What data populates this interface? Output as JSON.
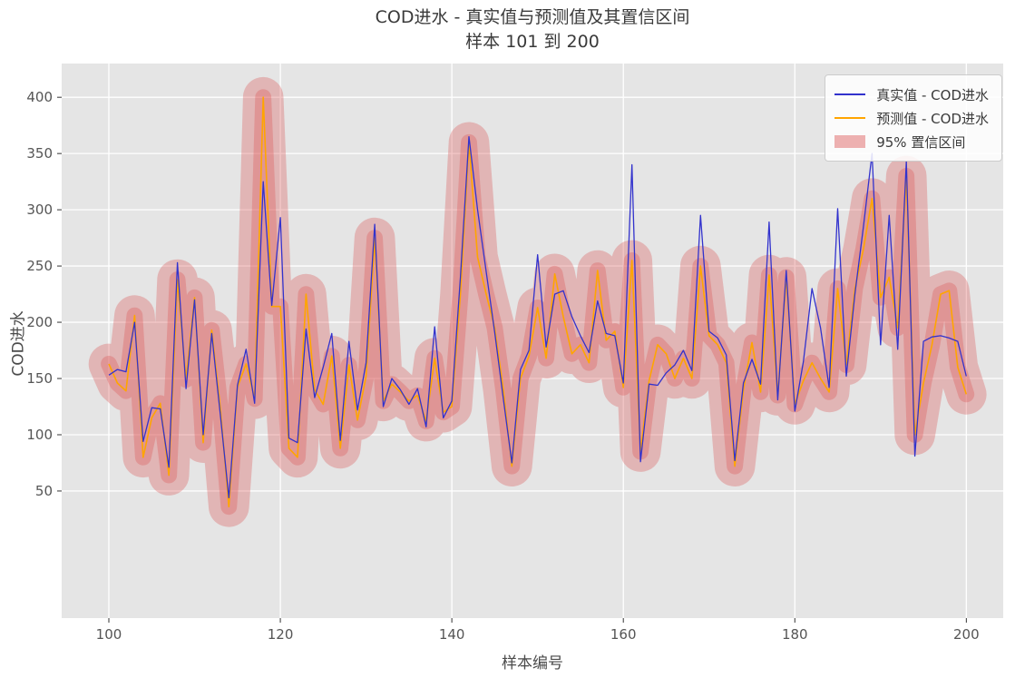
{
  "title": {
    "line1": "COD进水 - 真实值与预测值及其置信区间",
    "line2": "样本 101 到 200"
  },
  "axes": {
    "xlabel": "样本编号",
    "ylabel": "COD进水",
    "x_ticks": [
      100,
      120,
      140,
      160,
      180,
      200
    ],
    "y_ticks": [
      50,
      100,
      150,
      200,
      250,
      300,
      350,
      400
    ]
  },
  "legend": {
    "entries": [
      {
        "label": "真实值 - COD进水",
        "type": "line",
        "color": "#3232cd"
      },
      {
        "label": "预测值 - COD进水",
        "type": "line",
        "color": "#ffa500"
      },
      {
        "label": "95% 置信区间",
        "type": "patch",
        "color": "rgba(219,84,84,0.45)"
      }
    ],
    "position": "upper right"
  },
  "colors": {
    "plot_background": "#e5e5e5",
    "grid": "#ffffff",
    "true_line": "#3232cd",
    "pred_line": "#ffa500",
    "band": "rgba(219,84,84,0.33)",
    "tick_text": "#555555"
  },
  "chart_data": {
    "type": "line",
    "title": "COD进水 - 真实值与预测值及其置信区间 / 样本 101 到 200",
    "xlabel": "样本编号",
    "ylabel": "COD进水",
    "xlim": [
      94.5,
      204.3
    ],
    "ylim": [
      -63,
      430
    ],
    "grid": true,
    "legend_position": "upper right",
    "x": [
      100,
      101,
      102,
      103,
      104,
      105,
      106,
      107,
      108,
      109,
      110,
      111,
      112,
      113,
      114,
      115,
      116,
      117,
      118,
      119,
      120,
      121,
      122,
      123,
      124,
      125,
      126,
      127,
      128,
      129,
      130,
      131,
      132,
      133,
      134,
      135,
      136,
      137,
      138,
      139,
      140,
      141,
      142,
      143,
      144,
      145,
      146,
      147,
      148,
      149,
      150,
      151,
      152,
      153,
      154,
      155,
      156,
      157,
      158,
      159,
      160,
      161,
      162,
      163,
      164,
      165,
      166,
      167,
      168,
      169,
      170,
      171,
      172,
      173,
      174,
      175,
      176,
      177,
      178,
      179,
      180,
      181,
      182,
      183,
      184,
      185,
      186,
      187,
      188,
      189,
      190,
      191,
      192,
      193,
      194,
      195,
      196,
      197,
      198,
      199,
      200
    ],
    "series": [
      {
        "name": "真实值 - COD进水",
        "color": "#3232cd",
        "values": [
          153,
          158,
          156,
          200,
          94,
          124,
          123,
          71,
          253,
          141,
          220,
          100,
          190,
          118,
          44,
          144,
          176,
          128,
          325,
          215,
          293,
          97,
          93,
          194,
          133,
          160,
          190,
          95,
          183,
          122,
          164,
          287,
          125,
          150,
          140,
          127,
          141,
          107,
          196,
          115,
          130,
          240,
          365,
          300,
          245,
          191,
          132,
          75,
          158,
          175,
          260,
          178,
          225,
          228,
          205,
          188,
          173,
          219,
          190,
          188,
          146,
          340,
          76,
          145,
          144,
          155,
          162,
          175,
          157,
          295,
          192,
          186,
          171,
          77,
          146,
          167,
          145,
          289,
          131,
          246,
          121,
          165,
          230,
          195,
          142,
          301,
          152,
          225,
          285,
          350,
          180,
          295,
          176,
          343,
          81,
          183,
          187,
          188,
          186,
          183,
          152
        ]
      },
      {
        "name": "预测值 - COD进水",
        "color": "#ffa500",
        "values": [
          163,
          146,
          139,
          206,
          80,
          115,
          128,
          64,
          238,
          149,
          222,
          93,
          193,
          124,
          36,
          142,
          163,
          132,
          400,
          214,
          214,
          88,
          80,
          225,
          140,
          127,
          170,
          88,
          162,
          113,
          152,
          275,
          130,
          145,
          138,
          130,
          135,
          112,
          168,
          120,
          125,
          225,
          360,
          258,
          225,
          195,
          140,
          72,
          150,
          170,
          213,
          168,
          243,
          205,
          172,
          180,
          164,
          246,
          184,
          192,
          142,
          255,
          85,
          148,
          180,
          172,
          150,
          168,
          150,
          250,
          188,
          180,
          164,
          72,
          140,
          182,
          138,
          242,
          135,
          240,
          127,
          148,
          164,
          150,
          138,
          230,
          162,
          230,
          265,
          310,
          222,
          240,
          195,
          330,
          100,
          146,
          180,
          225,
          228,
          160,
          136
        ]
      }
    ],
    "band": {
      "name": "95% 置信区间",
      "based_on": "预测值 - COD进水",
      "half_width": 18,
      "color": "rgba(219,84,84,0.33)"
    }
  }
}
